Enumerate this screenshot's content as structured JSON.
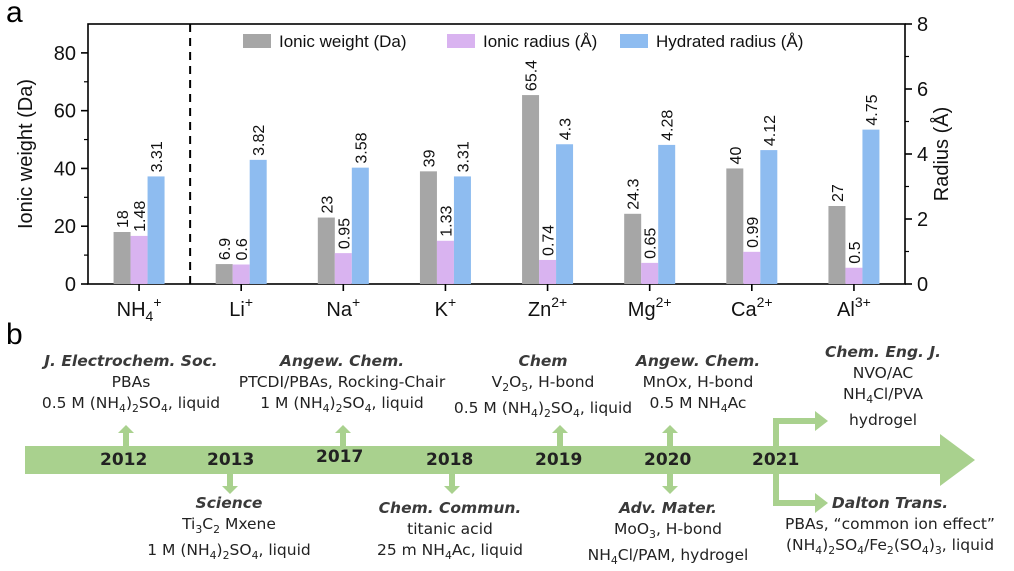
{
  "panels": {
    "a": "a",
    "b": "b"
  },
  "chart_data": {
    "type": "bar",
    "categories": [
      "NH4+",
      "Li+",
      "Na+",
      "K+",
      "Zn2+",
      "Mg2+",
      "Ca2+",
      "Al3+"
    ],
    "category_labels": [
      {
        "base": "NH",
        "sub": "4",
        "sup": "+"
      },
      {
        "base": "Li",
        "sub": "",
        "sup": "+"
      },
      {
        "base": "Na",
        "sub": "",
        "sup": "+"
      },
      {
        "base": "K",
        "sub": "",
        "sup": "+"
      },
      {
        "base": "Zn",
        "sub": "",
        "sup": "2+"
      },
      {
        "base": "Mg",
        "sub": "",
        "sup": "2+"
      },
      {
        "base": "Ca",
        "sub": "",
        "sup": "2+"
      },
      {
        "base": "Al",
        "sub": "",
        "sup": "3+"
      }
    ],
    "series": [
      {
        "name": "Ionic weight (Da)",
        "axis": "left",
        "color": "#a6a6a6",
        "values": [
          18,
          6.9,
          23,
          39,
          65.4,
          24.3,
          40,
          27
        ],
        "labels": [
          "18",
          "6.9",
          "23",
          "39",
          "65.4",
          "24.3",
          "40",
          "27"
        ]
      },
      {
        "name": "Ionic radius (Å)",
        "axis": "right",
        "color": "#d9b3f0",
        "values": [
          1.48,
          0.6,
          0.95,
          1.33,
          0.74,
          0.65,
          0.99,
          0.5
        ],
        "labels": [
          "1.48",
          "0.6",
          "0.95",
          "1.33",
          "0.74",
          "0.65",
          "0.99",
          "0.5"
        ]
      },
      {
        "name": "Hydrated radius (Å)",
        "axis": "right",
        "color": "#8ebcf0",
        "values": [
          3.31,
          3.82,
          3.58,
          3.31,
          4.3,
          4.28,
          4.12,
          4.75
        ],
        "labels": [
          "3.31",
          "3.82",
          "3.58",
          "3.31",
          "4.3",
          "4.28",
          "4.12",
          "4.75"
        ]
      }
    ],
    "ylabel": "Ionic weight (Da)",
    "y2label": "Radius (Å)",
    "ylim": [
      0,
      90
    ],
    "y2lim": [
      0,
      8
    ],
    "yticks": [
      "0",
      "20",
      "40",
      "60",
      "80"
    ],
    "y2ticks": [
      "0",
      "2",
      "4",
      "6",
      "8"
    ],
    "legend_position": "top-center",
    "grid": false
  },
  "timeline": {
    "years": [
      "2012",
      "2013",
      "2017",
      "2018",
      "2019",
      "2020",
      "2021"
    ],
    "events_above": [
      {
        "journal": "J. Electrochem. Soc.",
        "line1": "PBAs",
        "line2": "0.5 M (NH4)2SO4, liquid"
      },
      {
        "journal": "Angew. Chem.",
        "line1": "PTCDI/PBAs, Rocking-Chair",
        "line2": "1 M (NH4)2SO4, liquid"
      },
      {
        "journal": "Chem",
        "line1": "V2O5, H-bond",
        "line2": "0.5 M (NH4)2SO4, liquid"
      },
      {
        "journal": "Angew. Chem.",
        "line1": "MnOx, H-bond",
        "line2": "0.5 M NH4Ac"
      },
      {
        "journal": "Chem. Eng. J.",
        "line1": "NVO/AC",
        "line2": "NH4Cl/PVA",
        "line3": "hydrogel"
      }
    ],
    "events_below": [
      {
        "journal": "Science",
        "line1": "Ti3C2 Mxene",
        "line2": "1 M (NH4)2SO4, liquid"
      },
      {
        "journal": "Chem. Commun.",
        "line1": "titanic acid",
        "line2": "25 m NH4Ac, liquid"
      },
      {
        "journal": "Adv. Mater.",
        "line1": "MoO3, H-bond",
        "line2": "NH4Cl/PAM, hydrogel"
      },
      {
        "journal": "Dalton Trans.",
        "line1": "PBAs, “common ion effect”",
        "line2": "(NH4)2SO4/Fe2(SO4)3, liquid"
      }
    ],
    "arrow_color": "#a9d18e"
  }
}
